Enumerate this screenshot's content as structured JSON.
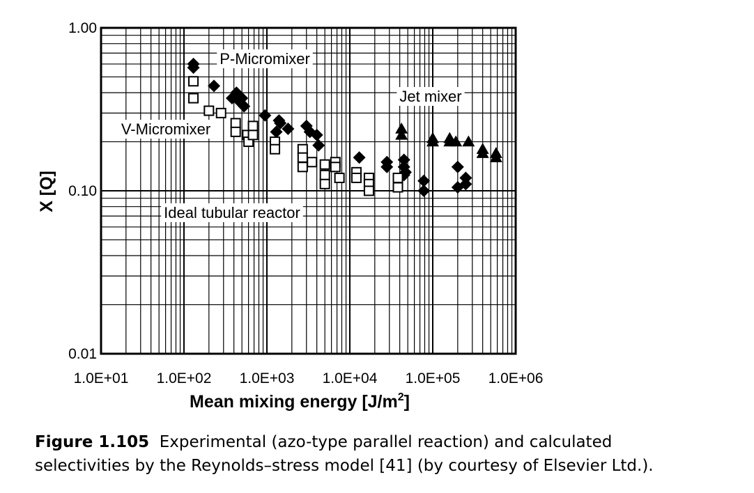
{
  "chart_data": {
    "type": "scatter",
    "x_scale": "log",
    "y_scale": "log",
    "xlim": [
      10,
      1000000
    ],
    "ylim": [
      0.01,
      1
    ],
    "grid": true,
    "xlabel": "Mean mixing energy [J/m²]",
    "xlabel_main": "Mean mixing energy [J/m",
    "xlabel_sup": "2",
    "xlabel_end": "]",
    "ylabel": "X [Q]",
    "x_tick_labels": [
      "1.0E+01",
      "1.0E+02",
      "1.0E+03",
      "1.0E+04",
      "1.0E+05",
      "1.0E+06"
    ],
    "y_tick_labels": [
      "0.01",
      "0.10",
      "1.00"
    ],
    "annotations": [
      "P-Micromixer",
      "V-Micromixer",
      "Ideal tubular reactor",
      "Jet mixer"
    ],
    "series": [
      {
        "marker": "diamond-filled",
        "points": [
          [
            130,
            0.6
          ],
          [
            130,
            0.57
          ],
          [
            230,
            0.44
          ],
          [
            380,
            0.37
          ],
          [
            430,
            0.4
          ],
          [
            450,
            0.36
          ],
          [
            500,
            0.37
          ],
          [
            530,
            0.33
          ],
          [
            950,
            0.29
          ],
          [
            1300,
            0.23
          ],
          [
            1400,
            0.27
          ],
          [
            1450,
            0.26
          ],
          [
            1800,
            0.24
          ],
          [
            3000,
            0.25
          ],
          [
            3300,
            0.23
          ],
          [
            4000,
            0.22
          ],
          [
            4200,
            0.19
          ],
          [
            13000,
            0.16
          ],
          [
            28000,
            0.15
          ],
          [
            28000,
            0.14
          ],
          [
            45000,
            0.155
          ],
          [
            45000,
            0.14
          ],
          [
            45000,
            0.125
          ],
          [
            47000,
            0.13
          ],
          [
            78000,
            0.115
          ],
          [
            78000,
            0.1
          ],
          [
            200000,
            0.14
          ],
          [
            200000,
            0.105
          ],
          [
            250000,
            0.12
          ],
          [
            250000,
            0.11
          ]
        ]
      },
      {
        "marker": "square-open",
        "points": [
          [
            130,
            0.47
          ],
          [
            130,
            0.37
          ],
          [
            200,
            0.31
          ],
          [
            280,
            0.3
          ],
          [
            420,
            0.26
          ],
          [
            420,
            0.23
          ],
          [
            580,
            0.22
          ],
          [
            600,
            0.2
          ],
          [
            680,
            0.25
          ],
          [
            680,
            0.22
          ],
          [
            1250,
            0.2
          ],
          [
            1250,
            0.18
          ],
          [
            2700,
            0.18
          ],
          [
            2700,
            0.16
          ],
          [
            2700,
            0.14
          ],
          [
            3500,
            0.15
          ],
          [
            5000,
            0.145
          ],
          [
            5000,
            0.125
          ],
          [
            5000,
            0.11
          ],
          [
            6700,
            0.15
          ],
          [
            6700,
            0.14
          ],
          [
            7500,
            0.12
          ],
          [
            12000,
            0.13
          ],
          [
            12000,
            0.12
          ],
          [
            17000,
            0.12
          ],
          [
            17000,
            0.11
          ],
          [
            17000,
            0.1
          ],
          [
            38000,
            0.12
          ],
          [
            38000,
            0.105
          ]
        ]
      },
      {
        "marker": "triangle-filled",
        "points": [
          [
            42000,
            0.24
          ],
          [
            42000,
            0.22
          ],
          [
            100000,
            0.21
          ],
          [
            100000,
            0.2
          ],
          [
            160000,
            0.21
          ],
          [
            160000,
            0.2
          ],
          [
            190000,
            0.2
          ],
          [
            270000,
            0.2
          ],
          [
            400000,
            0.18
          ],
          [
            400000,
            0.17
          ],
          [
            580000,
            0.17
          ],
          [
            580000,
            0.16
          ]
        ]
      }
    ]
  },
  "caption": {
    "label": "Figure 1.105",
    "line1": "Experimental (azo-type parallel reaction) and calculated",
    "line2": "selectivities by the Reynolds–stress model [41] (by courtesy of Elsevier Ltd.)."
  }
}
